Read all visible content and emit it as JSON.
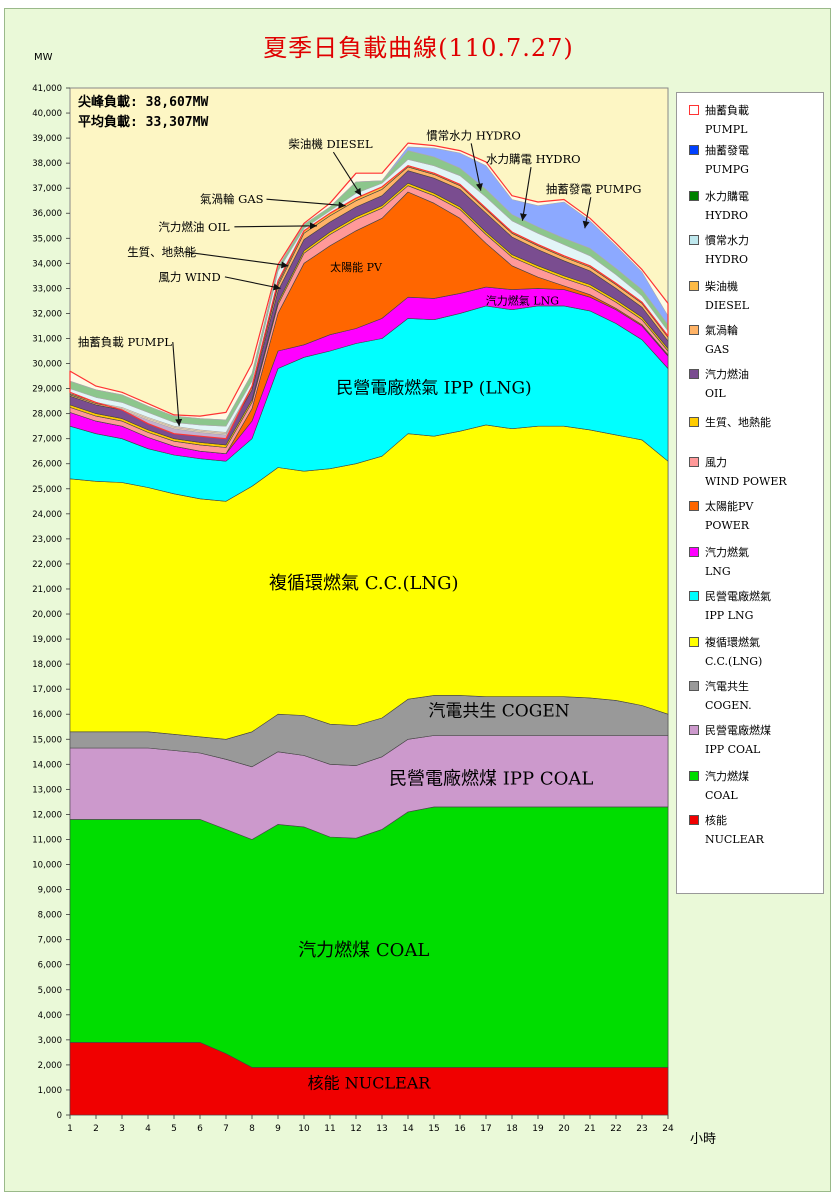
{
  "title": "夏季日負載曲線(110.7.27)",
  "unit": "MW",
  "xunit": "小時",
  "stats": {
    "peak": "尖峰負載: 38,607MW",
    "average": "平均負載: 33,307MW"
  },
  "colors": {
    "plot_bg": "#fdf6c4",
    "frame_bg": "#eaf9d8",
    "nuclear": "#f00000",
    "coal": "#00dd00",
    "ipp_coal": "#cc99cc",
    "cogen": "#999999",
    "cc_lng": "#ffff00",
    "ipp_lng": "#00ffff",
    "lng": "#ff00ff",
    "pv": "#ff6600",
    "wind": "#ff9999",
    "bio": "#ffcc00",
    "oil": "#7a4d90",
    "gas": "#ffb366",
    "diesel": "#ffbb44",
    "hydro": "#bfe8ee",
    "hydro_buy": "#008000",
    "pumpg": "#0040ff",
    "pumpl": "#ffffff"
  },
  "legend": [
    {
      "key": "pumpl",
      "label": "抽蓄負載\nPUMPL"
    },
    {
      "key": "pumpg",
      "label": "抽蓄發電\nPUMPG"
    },
    {
      "key": "hydro_buy",
      "label": "水力購電\nHYDRO"
    },
    {
      "key": "hydro",
      "label": "慣常水力\nHYDRO"
    },
    {
      "key": "diesel",
      "label": "柴油機\nDIESEL"
    },
    {
      "key": "gas",
      "label": "氣渦輪\nGAS"
    },
    {
      "key": "oil",
      "label": "汽力燃油\nOIL"
    },
    {
      "key": "bio",
      "label": "生質、地熱能"
    },
    {
      "key": "wind",
      "label": "風力\nWIND POWER"
    },
    {
      "key": "pv",
      "label": "太陽能PV\nPOWER"
    },
    {
      "key": "lng",
      "label": "汽力燃氣\nLNG"
    },
    {
      "key": "ipp_lng",
      "label": "民營電廠燃氣\nIPP LNG"
    },
    {
      "key": "cc_lng",
      "label": "複循環燃氣\nC.C.(LNG)"
    },
    {
      "key": "cogen",
      "label": "汽電共生\nCOGEN."
    },
    {
      "key": "ipp_coal",
      "label": "民營電廠燃煤\nIPP COAL"
    },
    {
      "key": "coal",
      "label": "汽力燃煤\nCOAL"
    },
    {
      "key": "nuclear",
      "label": "核能\nNUCLEAR"
    }
  ],
  "labels": {
    "nuclear": "核能 NUCLEAR",
    "coal": "汽力燃煤 COAL",
    "ipp_coal": "民營電廠燃煤 IPP COAL",
    "cogen": "汽電共生 COGEN",
    "cc_lng": "複循環燃氣 C.C.(LNG)",
    "ipp_lng": "民營電廠燃氣 IPP (LNG)",
    "lng": "汽力燃氣 LNG",
    "pv": "太陽能 PV",
    "pumpl": "抽蓄負載 PUMPL",
    "wind": "風力 WIND",
    "bio": "生質、地熱能",
    "oil": "汽力燃油 OIL",
    "gas": "氣渦輪 GAS",
    "diesel": "柴油機 DIESEL",
    "hydro": "慣常水力 HYDRO",
    "hydro_buy": "水力購電 HYDRO",
    "pumpg": "抽蓄發電 PUMPG"
  },
  "chart_data": {
    "type": "area",
    "stacked": true,
    "x": [
      1,
      2,
      3,
      4,
      5,
      6,
      7,
      8,
      9,
      10,
      11,
      12,
      13,
      14,
      15,
      16,
      17,
      18,
      19,
      20,
      21,
      22,
      23,
      24
    ],
    "xlim": [
      1,
      24
    ],
    "ylim": [
      0,
      41000
    ],
    "ytick_step": 1000,
    "grid": false,
    "legend_position": "right",
    "series_tops": {
      "nuclear": [
        2900,
        2900,
        2900,
        2900,
        2900,
        2900,
        2450,
        1900,
        1900,
        1900,
        1900,
        1900,
        1900,
        1900,
        1900,
        1900,
        1900,
        1900,
        1900,
        1900,
        1900,
        1900,
        1900,
        1900
      ],
      "coal": [
        11800,
        11800,
        11800,
        11800,
        11800,
        11800,
        11400,
        11000,
        11600,
        11500,
        11100,
        11050,
        11400,
        12100,
        12300,
        12300,
        12300,
        12300,
        12300,
        12300,
        12300,
        12300,
        12300,
        12300
      ],
      "ipp_coal": [
        14650,
        14650,
        14650,
        14650,
        14550,
        14450,
        14200,
        13900,
        14500,
        14350,
        14000,
        13950,
        14300,
        15000,
        15150,
        15150,
        15150,
        15150,
        15150,
        15150,
        15150,
        15150,
        15150,
        15150
      ],
      "cogen": [
        15300,
        15300,
        15300,
        15300,
        15200,
        15100,
        15000,
        15300,
        16000,
        15950,
        15600,
        15550,
        15850,
        16600,
        16750,
        16750,
        16700,
        16700,
        16700,
        16700,
        16650,
        16550,
        16350,
        16000
      ],
      "cc_lng": [
        25400,
        25300,
        25250,
        25050,
        24800,
        24600,
        24500,
        25100,
        25850,
        25700,
        25800,
        26000,
        26300,
        27200,
        27100,
        27300,
        27550,
        27400,
        27500,
        27500,
        27350,
        27150,
        26950,
        26100
      ],
      "ipp_lng": [
        27500,
        27200,
        27000,
        26600,
        26350,
        26200,
        26100,
        27000,
        29800,
        30250,
        30500,
        30800,
        31000,
        31800,
        31750,
        32000,
        32300,
        32150,
        32300,
        32300,
        32100,
        31600,
        30950,
        29800
      ],
      "lng": [
        28050,
        27700,
        27500,
        27050,
        26700,
        26500,
        26400,
        27700,
        30500,
        30750,
        31150,
        31400,
        31800,
        32650,
        32600,
        32800,
        33050,
        32950,
        33000,
        32950,
        32650,
        32150,
        31500,
        30300
      ],
      "pv": [
        28050,
        27700,
        27500,
        27050,
        26700,
        26500,
        26400,
        28200,
        32000,
        34000,
        34700,
        35300,
        35800,
        36850,
        36400,
        35800,
        34800,
        33900,
        33450,
        33100,
        32750,
        32200,
        31550,
        30350
      ],
      "wind": [
        28250,
        27900,
        27700,
        27250,
        26900,
        26750,
        26650,
        28450,
        32350,
        34400,
        35150,
        35750,
        36200,
        37100,
        36700,
        36150,
        35150,
        34250,
        33800,
        33400,
        33050,
        32450,
        31750,
        30500
      ],
      "bio": [
        28350,
        28000,
        27800,
        27350,
        27000,
        26850,
        26750,
        28550,
        32450,
        34500,
        35250,
        35850,
        36300,
        37200,
        36800,
        36250,
        35250,
        34350,
        33900,
        33500,
        33150,
        32550,
        31850,
        30600
      ],
      "oil": [
        28700,
        28350,
        28150,
        27750,
        27400,
        27250,
        27150,
        28950,
        32900,
        34950,
        35650,
        36250,
        36700,
        37700,
        37400,
        36950,
        36000,
        35050,
        34550,
        34100,
        33700,
        33000,
        32250,
        30900
      ],
      "gas": [
        28750,
        28400,
        28200,
        27800,
        27450,
        27300,
        27200,
        29050,
        33100,
        35200,
        35900,
        36500,
        36950,
        37850,
        37550,
        37100,
        36150,
        35200,
        34700,
        34250,
        33850,
        33150,
        32400,
        31050
      ],
      "diesel": [
        28800,
        28450,
        28250,
        27850,
        27500,
        27350,
        27250,
        29100,
        33200,
        35300,
        36000,
        36600,
        37050,
        37900,
        37600,
        37150,
        36200,
        35250,
        34750,
        34300,
        33900,
        33200,
        32450,
        31100
      ],
      "hydro": [
        29000,
        28650,
        28450,
        28050,
        27650,
        27550,
        27500,
        29300,
        33700,
        35400,
        36100,
        36800,
        37200,
        38150,
        37900,
        37500,
        36650,
        35700,
        35200,
        34750,
        34300,
        33550,
        32700,
        31300
      ],
      "hydro_buy": [
        29300,
        28950,
        28750,
        28300,
        27900,
        27800,
        27750,
        29600,
        33850,
        35550,
        36250,
        37250,
        37300,
        38500,
        38250,
        37800,
        36950,
        35950,
        35450,
        35000,
        34600,
        33800,
        32950,
        31550
      ],
      "pumpg": [
        29300,
        28950,
        28750,
        28300,
        27900,
        27800,
        27750,
        29600,
        33850,
        35550,
        36250,
        37250,
        37300,
        38650,
        38600,
        38400,
        37900,
        36550,
        36300,
        36450,
        35700,
        34700,
        33650,
        31900
      ],
      "pumpl": [
        29700,
        29100,
        28850,
        28400,
        27950,
        27900,
        28050,
        30000,
        33950,
        35600,
        36400,
        37600,
        37600,
        38800,
        38700,
        38500,
        38050,
        36700,
        36450,
        36550,
        35800,
        34800,
        33750,
        32400
      ]
    },
    "series_bottoms": {
      "pumpl": [
        28850,
        28450,
        28150,
        27600,
        27200,
        27100,
        27000,
        29100,
        33300,
        35300,
        36000,
        36600,
        37050,
        37900,
        37600,
        37150,
        36200,
        35250,
        34750,
        34300,
        33900,
        33200,
        32450,
        31100
      ]
    },
    "annotations": [
      {
        "key": "pumpl",
        "text_x": 1.3,
        "text_y": 30700,
        "arrow_x": 5.2,
        "arrow_y": 27500
      },
      {
        "key": "wind",
        "text_x": 4.4,
        "text_y": 33300,
        "arrow_x": 9.1,
        "arrow_y": 33000
      },
      {
        "key": "bio",
        "text_x": 3.2,
        "text_y": 34300,
        "arrow_x": 9.4,
        "arrow_y": 33900
      },
      {
        "key": "oil",
        "text_x": 4.4,
        "text_y": 35300,
        "arrow_x": 10.5,
        "arrow_y": 35500
      },
      {
        "key": "gas",
        "text_x": 6.0,
        "text_y": 36400,
        "arrow_x": 11.6,
        "arrow_y": 36300
      },
      {
        "key": "diesel",
        "text_x": 9.4,
        "text_y": 38600,
        "arrow_x": 12.2,
        "arrow_y": 36700
      },
      {
        "key": "hydro",
        "text_x": 14.7,
        "text_y": 38950,
        "arrow_x": 16.8,
        "arrow_y": 36900
      },
      {
        "key": "hydro_buy",
        "text_x": 17.0,
        "text_y": 38000,
        "arrow_x": 18.4,
        "arrow_y": 35700
      },
      {
        "key": "pumpg",
        "text_x": 19.3,
        "text_y": 36800,
        "arrow_x": 20.8,
        "arrow_y": 35400
      }
    ],
    "area_labels": [
      {
        "key": "nuclear",
        "x": 12.5,
        "y": 1050,
        "size": 16
      },
      {
        "key": "coal",
        "x": 12.3,
        "y": 6350,
        "size": 18
      },
      {
        "key": "ipp_coal",
        "x": 17.2,
        "y": 13200,
        "size": 18
      },
      {
        "key": "cogen",
        "x": 17.5,
        "y": 15900,
        "size": 17
      },
      {
        "key": "cc_lng",
        "x": 12.3,
        "y": 21000,
        "size": 18
      },
      {
        "key": "ipp_lng",
        "x": 15.0,
        "y": 28800,
        "size": 17
      },
      {
        "key": "lng",
        "x": 18.4,
        "y": 32350,
        "size": 11
      },
      {
        "key": "pv",
        "x": 12.0,
        "y": 33700,
        "size": 11
      }
    ]
  }
}
